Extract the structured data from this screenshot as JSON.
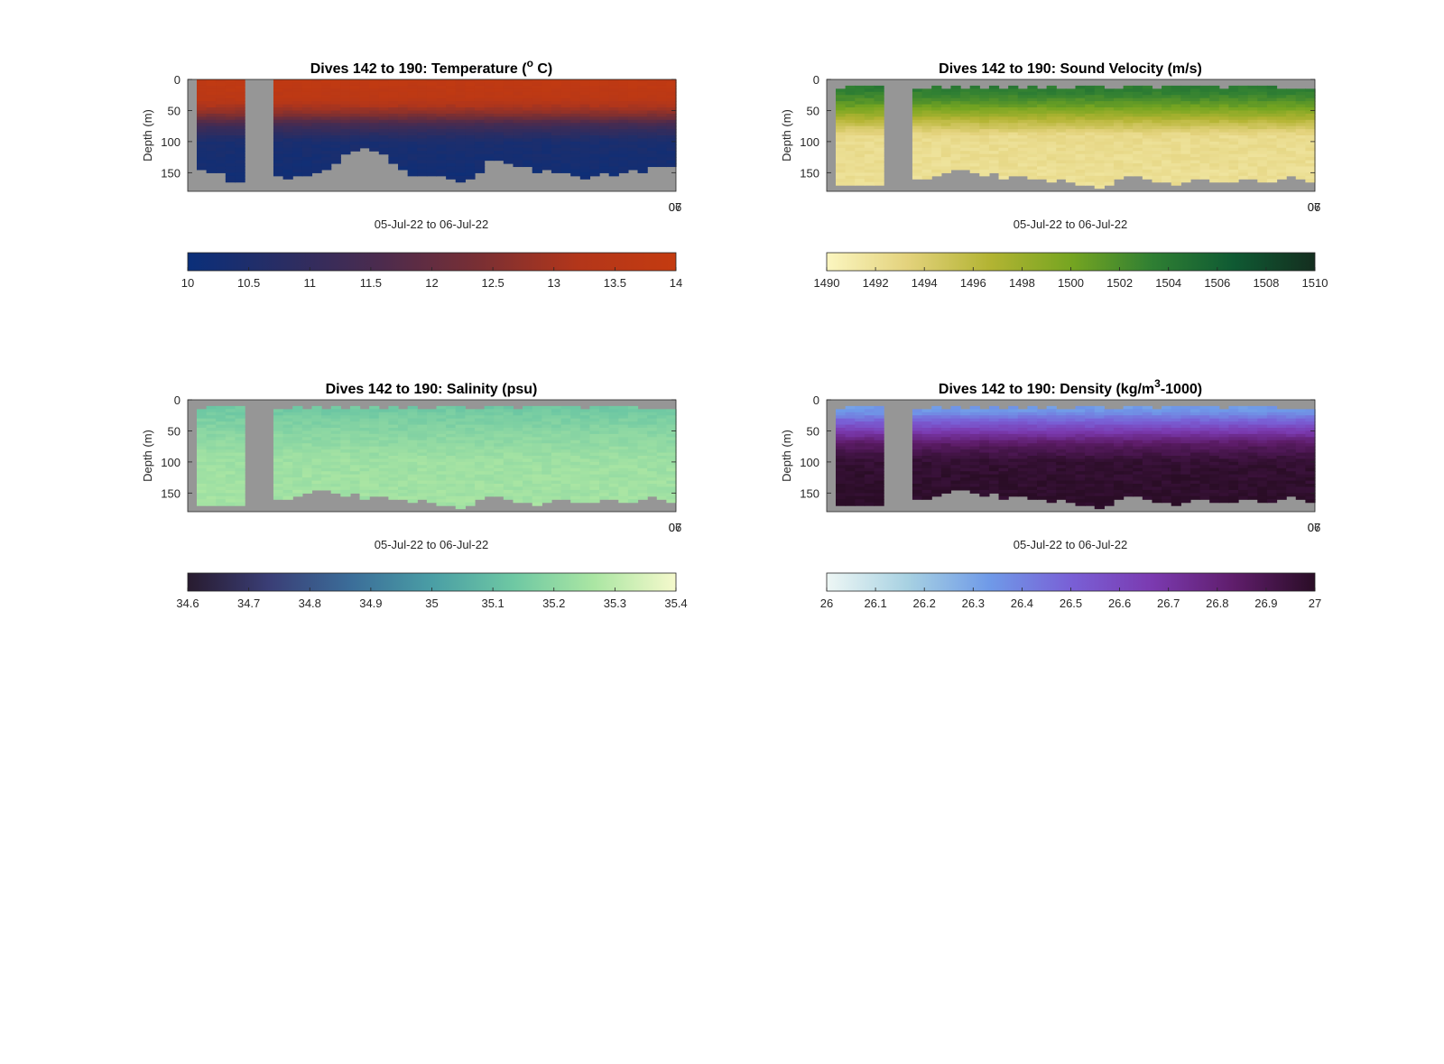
{
  "chart_data": [
    {
      "id": "temperature",
      "type": "heatmap",
      "title_main": "Dives 142 to 190: Temperature (",
      "title_sup": "o",
      "title_tail": " C)",
      "ylabel": "Depth (m)",
      "xlabel": "05-Jul-22 to 06-Jul-22",
      "x_end_tick_labels": [
        "06",
        "07"
      ],
      "yticks": [
        0,
        50,
        100,
        150
      ],
      "ylim": [
        0,
        180
      ],
      "clim": [
        10,
        14
      ],
      "colorbar_ticks": [
        "10",
        "10.5",
        "11",
        "11.5",
        "12",
        "12.5",
        "13",
        "13.5",
        "14"
      ],
      "colors": [
        "#0a2f7a",
        "#2a2d63",
        "#4d2b4d",
        "#7a2f33",
        "#b3361a",
        "#c43b10"
      ],
      "no_data_color": "#969696",
      "gap_profiles": [
        5,
        6,
        7
      ],
      "profile_max_depth": [
        142,
        145,
        145,
        160,
        162,
        150,
        150,
        150,
        150,
        155,
        153,
        150,
        148,
        140,
        130,
        118,
        112,
        105,
        110,
        115,
        130,
        140,
        150,
        150,
        152,
        153,
        155,
        160,
        155,
        145,
        128,
        125,
        130,
        135,
        138,
        145,
        140,
        145,
        148,
        150,
        155,
        150,
        148,
        150,
        145,
        140,
        145,
        138,
        135,
        135
      ],
      "layers": [
        {
          "depth": 0,
          "value": 13.8
        },
        {
          "depth": 30,
          "value": 13.6
        },
        {
          "depth": 55,
          "value": 12.6
        },
        {
          "depth": 75,
          "value": 11.3
        },
        {
          "depth": 100,
          "value": 10.4
        },
        {
          "depth": 180,
          "value": 10.1
        }
      ]
    },
    {
      "id": "sound-velocity",
      "type": "heatmap",
      "title_main": "Dives 142 to 190: Sound Velocity (m/s)",
      "title_sup": "",
      "title_tail": "",
      "ylabel": "Depth (m)",
      "xlabel": "05-Jul-22 to 06-Jul-22",
      "x_end_tick_labels": [
        "06",
        "07"
      ],
      "yticks": [
        0,
        50,
        100,
        150
      ],
      "ylim": [
        0,
        180
      ],
      "clim": [
        1490,
        1510
      ],
      "colorbar_ticks": [
        "1490",
        "1492",
        "1494",
        "1496",
        "1498",
        "1500",
        "1502",
        "1504",
        "1506",
        "1508",
        "1510"
      ],
      "colors": [
        "#fbf6c0",
        "#e3d27c",
        "#b3b433",
        "#76a521",
        "#2f7f33",
        "#0f5a33",
        "#142e1f"
      ],
      "no_data_color": "#969696",
      "gap_profiles": [
        5,
        6,
        7
      ],
      "profile_max_depth": [
        165,
        168,
        167,
        169,
        168,
        165,
        162,
        160,
        158,
        155,
        150,
        145,
        140,
        140,
        148,
        150,
        148,
        155,
        152,
        150,
        155,
        158,
        160,
        158,
        162,
        165,
        168,
        170,
        165,
        155,
        150,
        152,
        158,
        160,
        162,
        165,
        160,
        158,
        155,
        160,
        162,
        160,
        155,
        158,
        160,
        162,
        155,
        150,
        155,
        160
      ],
      "layers": [
        {
          "depth": 0,
          "value": 1504.0
        },
        {
          "depth": 20,
          "value": 1503.5
        },
        {
          "depth": 40,
          "value": 1501.0
        },
        {
          "depth": 65,
          "value": 1496.5
        },
        {
          "depth": 90,
          "value": 1492.5
        },
        {
          "depth": 180,
          "value": 1492.0
        }
      ]
    },
    {
      "id": "salinity",
      "type": "heatmap",
      "title_main": "Dives 142 to 190: Salinity (psu)",
      "title_sup": "",
      "title_tail": "",
      "ylabel": "Depth (m)",
      "xlabel": "05-Jul-22 to 06-Jul-22",
      "x_end_tick_labels": [
        "06",
        "07"
      ],
      "yticks": [
        0,
        50,
        100,
        150
      ],
      "ylim": [
        0,
        180
      ],
      "clim": [
        34.6,
        35.4
      ],
      "colorbar_ticks": [
        "34.6",
        "34.7",
        "34.8",
        "34.9",
        "35",
        "35.1",
        "35.2",
        "35.3",
        "35.4"
      ],
      "colors": [
        "#281b2f",
        "#3a3e76",
        "#3b6d99",
        "#4a9ea5",
        "#6ec8a3",
        "#abe6a3",
        "#f5f9cc"
      ],
      "no_data_color": "#969696",
      "gap_profiles": [
        5,
        6,
        7
      ],
      "profile_max_depth": [
        165,
        168,
        167,
        169,
        168,
        165,
        162,
        160,
        158,
        155,
        150,
        145,
        140,
        140,
        148,
        150,
        148,
        155,
        152,
        150,
        155,
        158,
        160,
        158,
        162,
        165,
        168,
        170,
        165,
        155,
        150,
        152,
        158,
        160,
        162,
        165,
        160,
        158,
        155,
        160,
        162,
        160,
        155,
        158,
        160,
        162,
        155,
        150,
        155,
        160
      ],
      "layers": [
        {
          "depth": 0,
          "value": 35.12
        },
        {
          "depth": 30,
          "value": 35.16
        },
        {
          "depth": 60,
          "value": 35.2
        },
        {
          "depth": 100,
          "value": 35.24
        },
        {
          "depth": 180,
          "value": 35.25
        }
      ]
    },
    {
      "id": "density",
      "type": "heatmap",
      "title_main": "Dives 142 to 190: Density (kg/m",
      "title_sup": "3",
      "title_tail": "-1000)",
      "ylabel": "Depth (m)",
      "xlabel": "05-Jul-22 to 06-Jul-22",
      "x_end_tick_labels": [
        "06",
        "07"
      ],
      "yticks": [
        0,
        50,
        100,
        150
      ],
      "ylim": [
        0,
        180
      ],
      "clim": [
        26,
        27
      ],
      "colors": [
        "#eef7f5",
        "#a7d1e2",
        "#6f9ae8",
        "#7960d6",
        "#7b3ab0",
        "#5f1d6b",
        "#2a0d26"
      ],
      "colorbar_ticks": [
        "26",
        "26.1",
        "26.2",
        "26.3",
        "26.4",
        "26.5",
        "26.6",
        "26.7",
        "26.8",
        "26.9",
        "27"
      ],
      "no_data_color": "#969696",
      "gap_profiles": [
        5,
        6,
        7
      ],
      "profile_max_depth": [
        165,
        168,
        167,
        169,
        168,
        165,
        162,
        160,
        158,
        155,
        150,
        145,
        140,
        140,
        148,
        150,
        148,
        155,
        152,
        150,
        155,
        158,
        160,
        158,
        162,
        165,
        168,
        170,
        165,
        155,
        150,
        152,
        158,
        160,
        162,
        165,
        160,
        158,
        155,
        160,
        162,
        160,
        155,
        158,
        160,
        162,
        155,
        150,
        155,
        160
      ],
      "layers": [
        {
          "depth": 0,
          "value": 26.3
        },
        {
          "depth": 20,
          "value": 26.35
        },
        {
          "depth": 45,
          "value": 26.6
        },
        {
          "depth": 70,
          "value": 26.85
        },
        {
          "depth": 100,
          "value": 26.97
        },
        {
          "depth": 180,
          "value": 27.0
        }
      ]
    }
  ]
}
